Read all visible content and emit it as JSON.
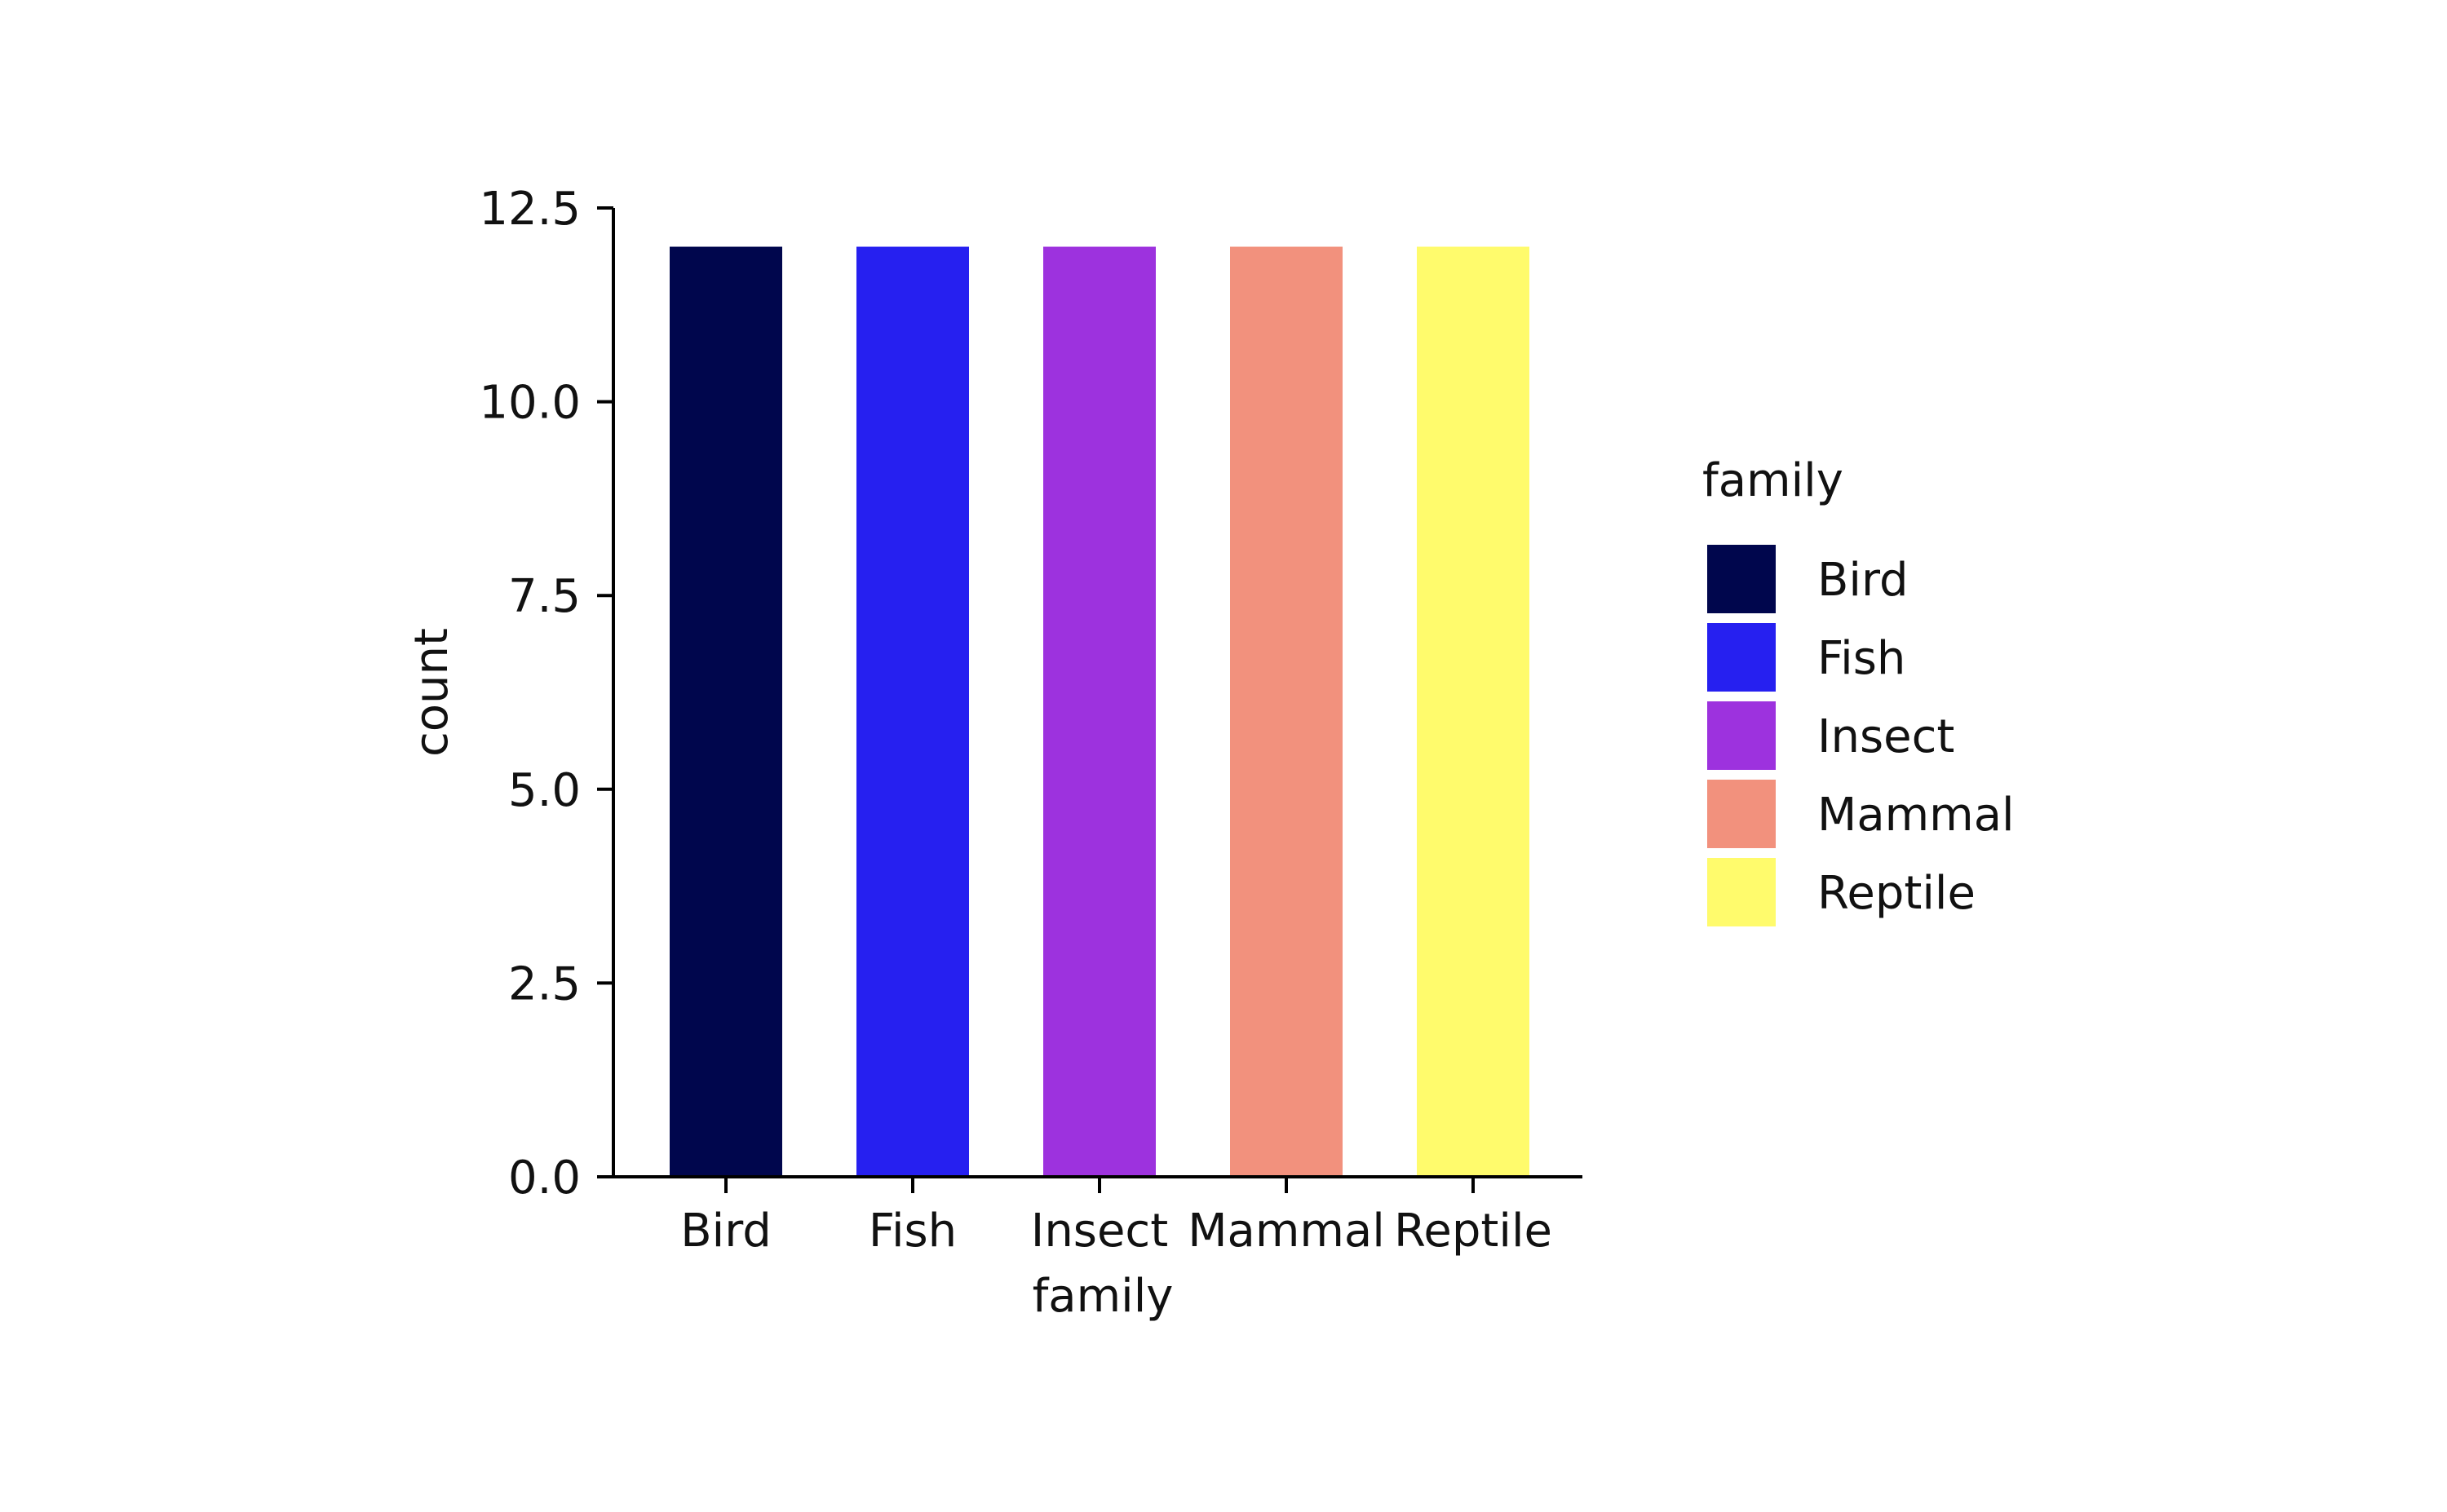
{
  "chart_data": {
    "type": "bar",
    "title": "",
    "xlabel": "family",
    "ylabel": "count",
    "categories": [
      "Bird",
      "Fish",
      "Insect",
      "Mammal",
      "Reptile"
    ],
    "values": [
      12,
      12,
      12,
      12,
      12
    ],
    "colors": [
      "#00064d",
      "#2620f0",
      "#9d32de",
      "#f2917d",
      "#fffb6c"
    ],
    "ylim": [
      0,
      12.5
    ],
    "yticks": [
      0.0,
      2.5,
      5.0,
      7.5,
      10.0,
      12.5
    ],
    "ytick_labels": [
      "0.0",
      "2.5",
      "5.0",
      "7.5",
      "10.0",
      "12.5"
    ],
    "grid": false,
    "legend": {
      "title": "family",
      "placement": "right",
      "entries": [
        "Bird",
        "Fish",
        "Insect",
        "Mammal",
        "Reptile"
      ]
    }
  }
}
